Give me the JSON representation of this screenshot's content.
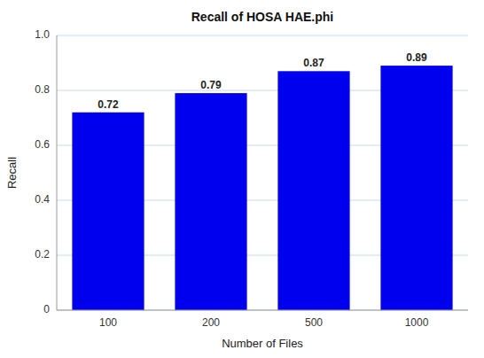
{
  "chart_data": {
    "type": "bar",
    "title": "Recall of HOSA HAE.phi",
    "xlabel": "Number of Files",
    "ylabel": "Recall",
    "categories": [
      "100",
      "200",
      "500",
      "1000"
    ],
    "values": [
      0.72,
      0.79,
      0.87,
      0.89
    ],
    "color": "#0000EE",
    "ylim": [
      0,
      1.0
    ],
    "yticks": [
      0,
      0.2,
      0.4,
      0.6,
      0.8,
      {
        "value": 1.0,
        "label": "1.0"
      }
    ],
    "grid": true,
    "data_labels": true
  }
}
